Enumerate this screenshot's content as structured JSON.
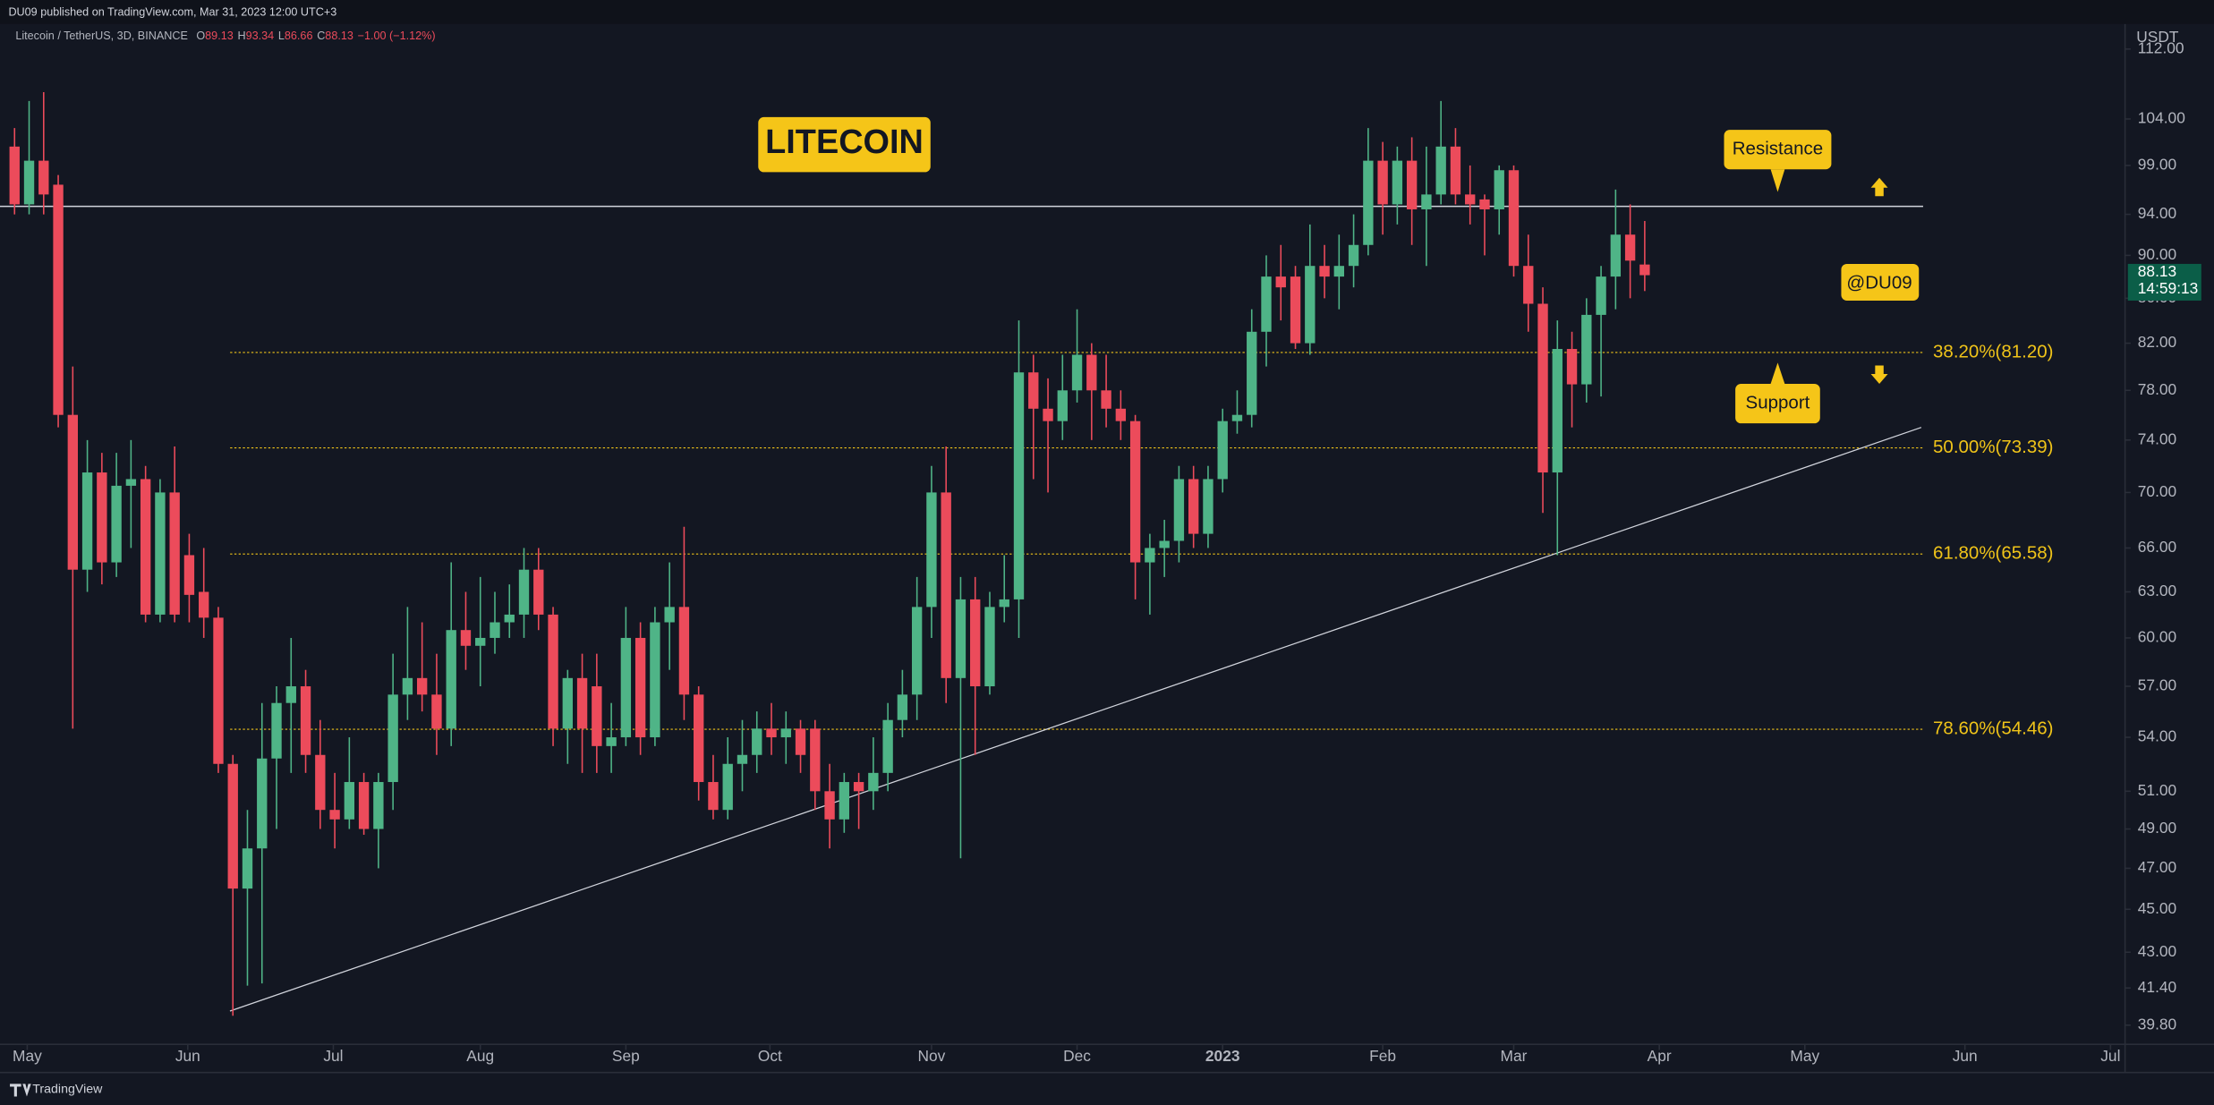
{
  "header": "DU09 published on TradingView.com, Mar 31, 2023 12:00 UTC+3",
  "footer": "TradingView",
  "chart_data": {
    "type": "candlestick",
    "symbol": "Litecoin / TetherUS, 3D, BINANCE",
    "ohlc_legend": [
      {
        "label": "O",
        "value": 89.13
      },
      {
        "label": "H",
        "value": 93.34
      },
      {
        "label": "L",
        "value": 86.66
      },
      {
        "label": "C",
        "value": 88.13
      }
    ],
    "change": "−1.00 (−1.12%)",
    "y_axis_unit": "USDT",
    "last_price": 88.13,
    "countdown": "14:59:13",
    "up_color": "#4fb487",
    "down_color": "#ec4b5b",
    "log_scale": true,
    "candles": {
      "open": [
        101,
        95,
        99.5,
        97,
        76,
        64.5,
        71.5,
        65,
        70.5,
        71,
        61.5,
        70,
        65.5,
        63,
        61.3,
        52.5,
        46,
        48,
        52.8,
        56,
        57,
        53,
        50,
        49.5,
        51.5,
        49,
        51.5,
        56.5,
        57.5,
        56.5,
        54.5,
        60.5,
        59.5,
        60,
        61,
        61.5,
        64.5,
        61.5,
        54.5,
        57.5,
        57,
        53.5,
        54,
        60,
        54,
        61,
        62,
        56.5,
        51.5,
        50,
        52.5,
        53,
        54.5,
        54,
        54.5,
        54.5,
        51,
        49.5,
        51.5,
        51,
        52,
        55,
        56.5,
        62,
        70,
        57.5,
        62.5,
        57,
        62,
        62.5,
        79.5,
        76.5,
        75.5,
        78,
        81,
        78,
        76.5,
        75.5,
        65,
        66,
        66.5,
        71,
        67,
        71,
        75.5,
        76,
        83,
        88,
        88,
        82,
        89,
        88,
        89,
        91,
        99.5,
        95,
        99.5,
        94.5,
        96,
        101,
        96,
        95.5,
        94.5,
        98.5,
        89,
        85.5,
        71.5,
        81.5,
        78.5,
        84.5,
        88,
        92,
        89.13
      ],
      "high": [
        103,
        106,
        107,
        98,
        80,
        74,
        73,
        73,
        74,
        72,
        71,
        73.5,
        67,
        66,
        62,
        53,
        50,
        56,
        57,
        60,
        58,
        55,
        52,
        54,
        52,
        52,
        59,
        62,
        61,
        59,
        65,
        63,
        64,
        63,
        63.5,
        66,
        66,
        62,
        58,
        59,
        59,
        56,
        62,
        61,
        62,
        65,
        67.5,
        57,
        53,
        54,
        55,
        55.5,
        56,
        55.5,
        55,
        55,
        52.5,
        52,
        52,
        54,
        56,
        58,
        64,
        72,
        73.5,
        64,
        64,
        63,
        65.5,
        84,
        81,
        79,
        81,
        85,
        82,
        81,
        78,
        76,
        67,
        68,
        72,
        72,
        72,
        76.5,
        78,
        85,
        90,
        91,
        89,
        93,
        91,
        92,
        94,
        103,
        101.5,
        101,
        102,
        101,
        106,
        103,
        99,
        96,
        99,
        99,
        92,
        87,
        84,
        83,
        86,
        89,
        96.5,
        95,
        93.34
      ],
      "low": [
        94,
        94,
        94,
        75,
        54.5,
        63,
        63.5,
        64,
        66,
        61,
        61,
        61,
        61,
        60,
        52,
        40.2,
        41.5,
        41.6,
        49,
        52,
        52,
        49,
        48,
        49,
        48.7,
        47,
        50,
        55,
        55.5,
        53,
        53.5,
        58,
        57,
        59,
        60,
        60,
        60.5,
        53.5,
        52.5,
        52,
        52,
        52,
        53.5,
        53,
        53.5,
        58,
        55,
        50.5,
        49.5,
        49.5,
        51,
        52,
        53,
        52.5,
        52,
        50,
        48,
        48.8,
        49,
        50,
        51,
        54,
        55,
        60,
        56,
        47.5,
        53,
        56.5,
        61,
        60,
        71,
        70,
        74,
        77,
        74,
        75,
        74,
        62.5,
        61.5,
        64,
        65,
        66,
        66,
        70,
        74.5,
        75,
        80,
        84,
        81.5,
        81,
        86,
        85,
        87,
        90,
        92,
        93,
        91,
        89,
        95,
        95,
        93,
        90,
        92,
        88,
        83,
        68.5,
        65.5,
        75,
        77,
        77.5,
        85,
        86,
        86.66
      ],
      "close": [
        95,
        99.5,
        96,
        76,
        64.5,
        71.5,
        65,
        70.5,
        71,
        61.5,
        70,
        61.5,
        62.8,
        61.3,
        52.5,
        46,
        48,
        52.8,
        56,
        57,
        53,
        50,
        49.5,
        51.5,
        49,
        51.5,
        56.5,
        57.5,
        56.5,
        54.5,
        60.5,
        59.5,
        60,
        61,
        61.5,
        64.5,
        61.5,
        54.5,
        57.5,
        54.5,
        53.5,
        54,
        60,
        54,
        61,
        62,
        56.5,
        51.5,
        50,
        52.5,
        53,
        54.5,
        54,
        54.5,
        53,
        51,
        49.5,
        51.5,
        51,
        52,
        55,
        56.5,
        62,
        70,
        57.5,
        62.5,
        57,
        62,
        62.5,
        79.5,
        76.5,
        75.5,
        78,
        81,
        78,
        76.5,
        75.5,
        65,
        66,
        66.5,
        71,
        67,
        71,
        75.5,
        76,
        83,
        88,
        87,
        82,
        89,
        88,
        89,
        91,
        99.5,
        95,
        99.5,
        94.5,
        96,
        101,
        96,
        95,
        94.5,
        98.5,
        89,
        85.5,
        71.5,
        81.5,
        78.5,
        84.5,
        88,
        92,
        89.5,
        88.13
      ]
    },
    "xlim": [
      -1,
      145
    ],
    "xticks": [
      {
        "value": 0.87,
        "label": "May"
      },
      {
        "value": 11.9,
        "label": "Jun"
      },
      {
        "value": 21.9,
        "label": "Jul"
      },
      {
        "value": 32,
        "label": "Aug"
      },
      {
        "value": 42,
        "label": "Sep"
      },
      {
        "value": 51.9,
        "label": "Oct"
      },
      {
        "value": 63,
        "label": "Nov"
      },
      {
        "value": 73,
        "label": "Dec"
      },
      {
        "value": 83,
        "label": "2023"
      },
      {
        "value": 94,
        "label": "Feb"
      },
      {
        "value": 103,
        "label": "Mar"
      },
      {
        "value": 113,
        "label": "Apr"
      },
      {
        "value": 123,
        "label": "May"
      },
      {
        "value": 134,
        "label": "Jun"
      },
      {
        "value": 144,
        "label": "Jul"
      }
    ],
    "ylim": [
      39,
      112.8
    ],
    "yticks": [
      {
        "value": 112,
        "label": "112.00"
      },
      {
        "value": 104,
        "label": "104.00"
      },
      {
        "value": 99,
        "label": "99.00"
      },
      {
        "value": 94,
        "label": "94.00"
      },
      {
        "value": 90,
        "label": "90.00"
      },
      {
        "value": 86,
        "label": "86.00"
      },
      {
        "value": 82,
        "label": "82.00"
      },
      {
        "value": 78,
        "label": "78.00"
      },
      {
        "value": 74,
        "label": "74.00"
      },
      {
        "value": 70,
        "label": "70.00"
      },
      {
        "value": 66,
        "label": "66.00"
      },
      {
        "value": 63,
        "label": "63.00"
      },
      {
        "value": 60,
        "label": "60.00"
      },
      {
        "value": 57,
        "label": "57.00"
      },
      {
        "value": 54,
        "label": "54.00"
      },
      {
        "value": 51,
        "label": "51.00"
      },
      {
        "value": 49,
        "label": "49.00"
      },
      {
        "value": 47,
        "label": "47.00"
      },
      {
        "value": 45,
        "label": "45.00"
      },
      {
        "value": 43,
        "label": "43.00"
      },
      {
        "value": 41.4,
        "label": "41.40"
      },
      {
        "value": 39.8,
        "label": "39.80"
      }
    ],
    "resistance_level": 94.8,
    "fib_levels": [
      {
        "label": "38.20%(81.20)",
        "value": 81.2
      },
      {
        "label": "50.00%(73.39)",
        "value": 73.39
      },
      {
        "label": "61.80%(65.58)",
        "value": 65.58
      },
      {
        "label": "78.60%(54.46)",
        "value": 54.46
      }
    ],
    "trendline": {
      "x": [
        14.8,
        131
      ],
      "y": [
        40.4,
        75.0
      ]
    },
    "annotations": {
      "title_badge": "LITECOIN",
      "resistance": "Resistance",
      "support": "Support",
      "watermark": "@DU09"
    }
  }
}
